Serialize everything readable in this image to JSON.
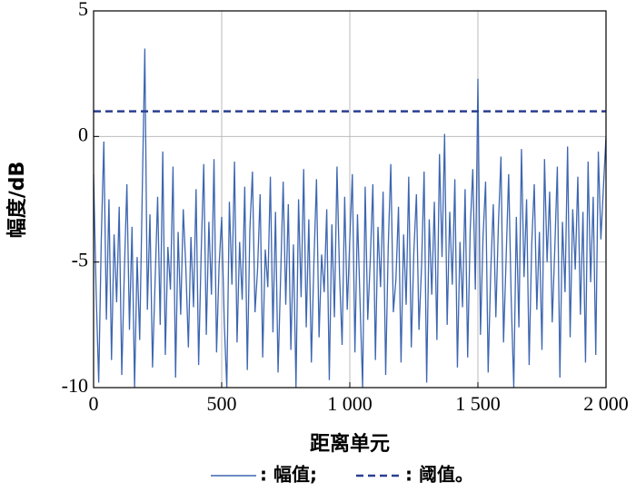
{
  "chart_data": {
    "type": "line",
    "xlabel": "距离单元",
    "ylabel": "幅度/dB",
    "xlim": [
      0,
      2000
    ],
    "ylim": [
      -10,
      5
    ],
    "xticks": [
      0,
      500,
      {
        "value": 1000,
        "label": "1 000"
      },
      {
        "value": 1500,
        "label": "1 500"
      },
      {
        "value": 2000,
        "label": "2 000"
      }
    ],
    "yticks": [
      -10,
      -5,
      0,
      5
    ],
    "grid": true,
    "series": [
      {
        "name": ": 幅值;",
        "color": "#3d66b0",
        "style": "solid",
        "x": [
          0,
          10,
          20,
          30,
          40,
          50,
          60,
          70,
          80,
          90,
          100,
          110,
          120,
          130,
          140,
          150,
          160,
          170,
          180,
          190,
          200,
          210,
          220,
          230,
          240,
          250,
          260,
          270,
          280,
          290,
          300,
          310,
          320,
          330,
          340,
          350,
          360,
          370,
          380,
          390,
          400,
          410,
          420,
          430,
          440,
          450,
          460,
          470,
          480,
          490,
          500,
          510,
          520,
          530,
          540,
          550,
          560,
          570,
          580,
          590,
          600,
          610,
          620,
          630,
          640,
          650,
          660,
          670,
          680,
          690,
          700,
          710,
          720,
          730,
          740,
          750,
          760,
          770,
          780,
          790,
          800,
          810,
          820,
          830,
          840,
          850,
          860,
          870,
          880,
          890,
          900,
          910,
          920,
          930,
          940,
          950,
          960,
          970,
          980,
          990,
          1000,
          1010,
          1020,
          1030,
          1040,
          1050,
          1060,
          1070,
          1080,
          1090,
          1100,
          1110,
          1120,
          1130,
          1140,
          1150,
          1160,
          1170,
          1180,
          1190,
          1200,
          1210,
          1220,
          1230,
          1240,
          1250,
          1260,
          1270,
          1280,
          1290,
          1300,
          1310,
          1320,
          1330,
          1340,
          1350,
          1360,
          1370,
          1380,
          1390,
          1400,
          1410,
          1420,
          1430,
          1440,
          1450,
          1460,
          1470,
          1480,
          1490,
          1500,
          1510,
          1520,
          1530,
          1540,
          1550,
          1560,
          1570,
          1580,
          1590,
          1600,
          1610,
          1620,
          1630,
          1640,
          1650,
          1660,
          1670,
          1680,
          1690,
          1700,
          1710,
          1720,
          1730,
          1740,
          1750,
          1760,
          1770,
          1780,
          1790,
          1800,
          1810,
          1820,
          1830,
          1840,
          1850,
          1860,
          1870,
          1880,
          1890,
          1900,
          1910,
          1920,
          1930,
          1940,
          1950,
          1960,
          1970,
          1980,
          1990,
          2000
        ],
        "values": [
          -1.5,
          -6.2,
          -9.8,
          -4.1,
          -0.2,
          -7.3,
          -2.5,
          -8.9,
          -3.9,
          -6.6,
          -2.8,
          -9.5,
          -5.4,
          -1.9,
          -7.7,
          -3.6,
          -10,
          -4.8,
          -8.1,
          -2.2,
          3.5,
          -6.9,
          -3.1,
          -9.2,
          -5.8,
          -2.4,
          -7.5,
          -0.6,
          -8.7,
          -4.4,
          -6.1,
          -1.2,
          -9.6,
          -3.8,
          -7.1,
          -2.9,
          -5.2,
          -8.4,
          -4.0,
          -6.8,
          -2.1,
          -9.1,
          -4.6,
          -1.1,
          -7.9,
          -3.4,
          -6.3,
          -0.9,
          -8.6,
          -5.1,
          -3.2,
          -7.4,
          -10,
          -2.6,
          -5.9,
          -1.0,
          -8.2,
          -4.2,
          -6.5,
          -2.0,
          -9.3,
          -3.7,
          -1.4,
          -7.0,
          -5.3,
          -2.3,
          -8.8,
          -4.5,
          -6.0,
          -1.6,
          -7.8,
          -3.0,
          -9.4,
          -5.6,
          -1.8,
          -6.7,
          -2.7,
          -8.5,
          -4.3,
          -10,
          -2.5,
          -6.4,
          -1.3,
          -7.6,
          -3.3,
          -9.0,
          -5.0,
          -1.7,
          -8.0,
          -4.7,
          -6.2,
          -2.9,
          -9.7,
          -3.5,
          -7.2,
          -1.2,
          -5.5,
          -8.3,
          -2.4,
          -6.9,
          -4.1,
          -1.5,
          -8.6,
          -3.1,
          -6.6,
          -10,
          -2.0,
          -7.3,
          -4.9,
          -1.9,
          -8.9,
          -3.6,
          -6.0,
          -2.2,
          -9.5,
          -4.4,
          -1.1,
          -7.0,
          -5.7,
          -2.8,
          -9.0,
          -3.9,
          -6.7,
          -1.6,
          -8.4,
          -4.6,
          -2.3,
          -7.7,
          -5.2,
          -1.4,
          -9.8,
          -3.3,
          -6.3,
          -2.6,
          -8.1,
          -0.7,
          -4.8,
          0.1,
          -7.5,
          -3.0,
          -5.9,
          -1.7,
          -9.2,
          -4.2,
          -6.8,
          -2.1,
          -8.8,
          -3.7,
          -1.3,
          -6.1,
          2.3,
          -7.9,
          -4.0,
          -1.8,
          -9.4,
          -5.4,
          -2.7,
          -7.2,
          -3.5,
          -0.8,
          -8.2,
          -4.9,
          -1.5,
          -6.5,
          -10,
          -3.2,
          -7.6,
          -0.5,
          -5.6,
          -2.5,
          -9.1,
          -4.3,
          -1.9,
          -6.9,
          -3.8,
          -8.5,
          -0.9,
          -5.0,
          -2.2,
          -7.4,
          -4.5,
          -1.2,
          -9.6,
          -3.4,
          -6.2,
          -0.4,
          -8.0,
          -2.9,
          -5.3,
          -1.6,
          -7.1,
          -3.0,
          -9.0,
          -1.0,
          -5.8,
          -2.4,
          -8.7,
          -0.6,
          -4.1,
          -2.0,
          0
        ]
      },
      {
        "name": ": 阈值。",
        "color": "#2b3f91",
        "style": "dashed",
        "x": [
          0,
          2000
        ],
        "values": [
          1,
          1
        ]
      }
    ]
  }
}
